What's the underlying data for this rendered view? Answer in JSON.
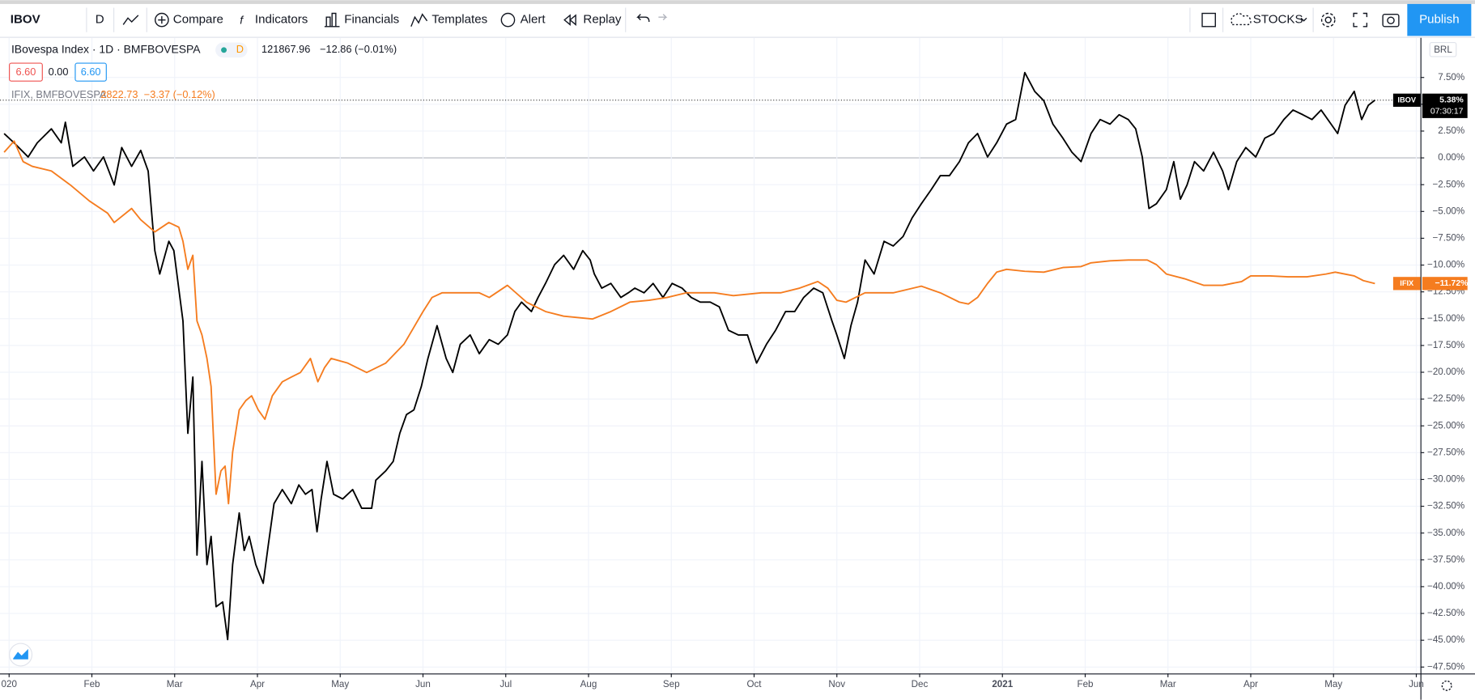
{
  "toolbar": {
    "symbol": "IBOV",
    "interval": "D",
    "buttons": [
      "Compare",
      "Indicators",
      "Financials",
      "Templates",
      "Alert",
      "Replay"
    ],
    "layout": "STOCKS",
    "publish": "Publish"
  },
  "legend": {
    "main": "IBovespa Index · 1D · BMFBOVESPA",
    "badge": "D",
    "price": "121867.96",
    "change": "−12.86 (−0.01%)",
    "sell": "6.60",
    "spread": "0.00",
    "buy": "6.60",
    "compare_symbol": "IFIX, BMFBOVESPA",
    "compare_price": "2822.73",
    "compare_change": "−3.37 (−0.12%)"
  },
  "chart_data": {
    "type": "line",
    "currency": "BRL",
    "countdown": "07:30:17",
    "grid": true,
    "xlim": [
      -0.11,
      17.05
    ],
    "ylim": [
      -48.1,
      11.2
    ],
    "xticks": [
      {
        "value": 0,
        "label": "020"
      },
      {
        "value": 1,
        "label": "Feb"
      },
      {
        "value": 2,
        "label": "Mar"
      },
      {
        "value": 3,
        "label": "Apr"
      },
      {
        "value": 4,
        "label": "May"
      },
      {
        "value": 5,
        "label": "Jun"
      },
      {
        "value": 6,
        "label": "Jul"
      },
      {
        "value": 7,
        "label": "Aug"
      },
      {
        "value": 8,
        "label": "Sep"
      },
      {
        "value": 9,
        "label": "Oct"
      },
      {
        "value": 10,
        "label": "Nov"
      },
      {
        "value": 11,
        "label": "Dec"
      },
      {
        "value": 12,
        "label": "2021"
      },
      {
        "value": 13,
        "label": "Feb"
      },
      {
        "value": 14,
        "label": "Mar"
      },
      {
        "value": 15,
        "label": "Apr"
      },
      {
        "value": 16,
        "label": "May"
      },
      {
        "value": 17,
        "label": "Jun"
      }
    ],
    "yticks": [
      {
        "value": 7.5,
        "label": "7.50%"
      },
      {
        "value": 5,
        "label": "5.00%"
      },
      {
        "value": 2.5,
        "label": "2.50%"
      },
      {
        "value": 0,
        "label": "0.00%"
      },
      {
        "value": -2.5,
        "label": "−2.50%"
      },
      {
        "value": -5,
        "label": "−5.00%"
      },
      {
        "value": -7.5,
        "label": "−7.50%"
      },
      {
        "value": -10,
        "label": "−10.00%"
      },
      {
        "value": -12.5,
        "label": "−12.50%"
      },
      {
        "value": -15,
        "label": "−15.00%"
      },
      {
        "value": -17.5,
        "label": "−17.50%"
      },
      {
        "value": -20,
        "label": "−20.00%"
      },
      {
        "value": -22.5,
        "label": "−22.50%"
      },
      {
        "value": -25,
        "label": "−25.00%"
      },
      {
        "value": -27.5,
        "label": "−27.50%"
      },
      {
        "value": -30,
        "label": "−30.00%"
      },
      {
        "value": -32.5,
        "label": "−32.50%"
      },
      {
        "value": -35,
        "label": "−35.00%"
      },
      {
        "value": -37.5,
        "label": "−37.50%"
      },
      {
        "value": -40,
        "label": "−40.00%"
      },
      {
        "value": -42.5,
        "label": "−42.50%"
      },
      {
        "value": -45,
        "label": "−45.00%"
      },
      {
        "value": -47.5,
        "label": "−47.50%"
      }
    ],
    "series": [
      {
        "name": "IBOV",
        "color": "#000000",
        "last_label": "5.38%",
        "x": [
          -0.06,
          0.06,
          0.23,
          0.34,
          0.51,
          0.63,
          0.68,
          0.77,
          0.91,
          1.02,
          1.14,
          1.27,
          1.36,
          1.48,
          1.59,
          1.68,
          1.76,
          1.82,
          1.93,
          1.99,
          2.1,
          2.16,
          2.22,
          2.27,
          2.33,
          2.39,
          2.44,
          2.5,
          2.58,
          2.64,
          2.7,
          2.78,
          2.84,
          2.9,
          2.98,
          3.07,
          3.13,
          3.2,
          3.3,
          3.41,
          3.5,
          3.58,
          3.66,
          3.72,
          3.77,
          3.84,
          3.92,
          4.03,
          4.15,
          4.26,
          4.38,
          4.43,
          4.55,
          4.64,
          4.72,
          4.8,
          4.89,
          4.98,
          5.06,
          5.17,
          5.28,
          5.36,
          5.45,
          5.57,
          5.68,
          5.8,
          5.91,
          6.02,
          6.11,
          6.19,
          6.31,
          6.39,
          6.48,
          6.59,
          6.7,
          6.82,
          6.93,
          7.02,
          7.07,
          7.16,
          7.27,
          7.39,
          7.48,
          7.56,
          7.67,
          7.78,
          7.9,
          8.01,
          8.13,
          8.24,
          8.35,
          8.47,
          8.58,
          8.69,
          8.81,
          8.92,
          9.03,
          9.15,
          9.26,
          9.38,
          9.49,
          9.6,
          9.72,
          9.83,
          9.94,
          10.0,
          10.09,
          10.17,
          10.25,
          10.34,
          10.45,
          10.57,
          10.68,
          10.8,
          10.91,
          11.02,
          11.14,
          11.25,
          11.36,
          11.48,
          11.59,
          11.7,
          11.82,
          11.93,
          12.05,
          12.16,
          12.27,
          12.39,
          12.5,
          12.61,
          12.73,
          12.84,
          12.95,
          13.07,
          13.18,
          13.3,
          13.41,
          13.52,
          13.61,
          13.69,
          13.77,
          13.86,
          13.98,
          14.07,
          14.15,
          14.23,
          14.32,
          14.43,
          14.55,
          14.66,
          14.73,
          14.83,
          14.94,
          15.06,
          15.17,
          15.28,
          15.4,
          15.51,
          15.63,
          15.74,
          15.85,
          15.97,
          16.05,
          16.14,
          16.25,
          16.34,
          16.42,
          16.5
        ],
        "values": [
          2.27,
          1.4,
          0.09,
          1.4,
          2.71,
          1.4,
          3.32,
          -0.79,
          0.09,
          -1.22,
          0.09,
          -2.53,
          0.96,
          -0.79,
          0.7,
          -1.22,
          -8.65,
          -10.84,
          -7.78,
          -8.65,
          -15.21,
          -25.7,
          -20.45,
          -37.06,
          -28.32,
          -37.94,
          -35.31,
          -41.87,
          -41.43,
          -44.93,
          -37.94,
          -33.13,
          -36.63,
          -35.31,
          -37.94,
          -39.69,
          -36.19,
          -32.26,
          -30.94,
          -32.26,
          -30.51,
          -31.38,
          -30.94,
          -34.88,
          -31.82,
          -28.32,
          -31.38,
          -31.82,
          -30.94,
          -32.69,
          -32.69,
          -30.07,
          -29.2,
          -28.32,
          -25.7,
          -23.95,
          -23.51,
          -21.33,
          -18.71,
          -15.65,
          -18.71,
          -20.02,
          -17.39,
          -16.52,
          -18.27,
          -16.96,
          -17.39,
          -16.52,
          -14.34,
          -13.46,
          -14.34,
          -13.02,
          -11.71,
          -9.96,
          -9.09,
          -10.4,
          -8.65,
          -9.53,
          -10.84,
          -12.15,
          -11.71,
          -13.02,
          -12.59,
          -12.15,
          -12.59,
          -11.71,
          -13.02,
          -11.71,
          -12.15,
          -13.02,
          -13.46,
          -13.46,
          -13.9,
          -16.08,
          -16.52,
          -16.52,
          -19.14,
          -17.39,
          -16.08,
          -14.34,
          -14.34,
          -13.02,
          -12.15,
          -12.59,
          -15.21,
          -16.52,
          -18.71,
          -15.65,
          -13.46,
          -9.53,
          -10.84,
          -7.78,
          -8.22,
          -7.34,
          -5.59,
          -4.28,
          -2.97,
          -1.66,
          -1.66,
          -0.35,
          1.4,
          2.27,
          0.09,
          1.4,
          3.15,
          3.58,
          7.95,
          6.21,
          5.33,
          3.15,
          1.84,
          0.52,
          -0.35,
          2.27,
          3.58,
          3.15,
          4.02,
          3.58,
          2.71,
          0.09,
          -4.72,
          -4.28,
          -2.97,
          -0.35,
          -3.85,
          -2.53,
          -0.35,
          -1.22,
          0.52,
          -1.22,
          -2.97,
          -0.35,
          0.96,
          0.09,
          1.84,
          2.27,
          3.58,
          4.46,
          4.02,
          3.58,
          4.46,
          3.15,
          2.27,
          4.9,
          6.21,
          3.58,
          4.9,
          5.38
        ]
      },
      {
        "name": "IFIX",
        "color": "#f57c1f",
        "last_label": "−11.72%",
        "x": [
          -0.06,
          0.06,
          0.17,
          0.28,
          0.51,
          0.74,
          0.97,
          1.19,
          1.27,
          1.48,
          1.59,
          1.76,
          1.93,
          2.05,
          2.1,
          2.16,
          2.22,
          2.27,
          2.33,
          2.39,
          2.44,
          2.5,
          2.56,
          2.61,
          2.65,
          2.7,
          2.78,
          2.86,
          2.93,
          3.01,
          3.09,
          3.18,
          3.3,
          3.41,
          3.52,
          3.64,
          3.73,
          3.81,
          3.89,
          4.09,
          4.32,
          4.55,
          4.77,
          5.0,
          5.11,
          5.23,
          5.45,
          5.68,
          5.8,
          6.02,
          6.25,
          6.48,
          6.7,
          7.05,
          7.27,
          7.5,
          7.73,
          7.95,
          8.18,
          8.52,
          8.75,
          9.09,
          9.32,
          9.55,
          9.77,
          9.89,
          10.0,
          10.11,
          10.34,
          10.68,
          11.02,
          11.25,
          11.48,
          11.59,
          11.7,
          11.82,
          11.93,
          12.05,
          12.27,
          12.5,
          12.73,
          12.95,
          13.07,
          13.3,
          13.52,
          13.75,
          13.86,
          13.98,
          14.2,
          14.43,
          14.66,
          14.89,
          15.0,
          15.23,
          15.45,
          15.68,
          15.91,
          16.02,
          16.25,
          16.36,
          16.5
        ],
        "values": [
          0.52,
          1.57,
          -0.35,
          -0.79,
          -1.22,
          -2.53,
          -4.02,
          -5.16,
          -6.03,
          -4.72,
          -5.77,
          -6.91,
          -6.03,
          -6.47,
          -7.78,
          -10.4,
          -9.09,
          -15.21,
          -16.52,
          -18.71,
          -21.33,
          -31.38,
          -29.2,
          -28.76,
          -32.26,
          -27.45,
          -23.51,
          -22.64,
          -22.2,
          -23.51,
          -24.39,
          -22.2,
          -20.89,
          -20.45,
          -20.02,
          -18.71,
          -20.89,
          -19.58,
          -18.71,
          -19.14,
          -20.02,
          -19.14,
          -17.39,
          -14.34,
          -13.02,
          -12.59,
          -12.59,
          -12.59,
          -13.02,
          -11.89,
          -13.46,
          -14.34,
          -14.77,
          -15.03,
          -14.34,
          -13.46,
          -13.28,
          -13.02,
          -12.59,
          -12.59,
          -12.85,
          -12.59,
          -12.59,
          -12.15,
          -11.54,
          -12.15,
          -13.28,
          -13.46,
          -12.59,
          -12.59,
          -11.97,
          -12.59,
          -13.46,
          -13.63,
          -13.02,
          -11.71,
          -10.66,
          -10.4,
          -10.58,
          -10.66,
          -10.23,
          -10.14,
          -9.79,
          -9.61,
          -9.53,
          -9.53,
          -9.96,
          -10.84,
          -11.27,
          -11.89,
          -11.89,
          -11.54,
          -11.01,
          -11.01,
          -11.1,
          -11.1,
          -10.84,
          -10.66,
          -11.01,
          -11.45,
          -11.72
        ]
      }
    ]
  }
}
